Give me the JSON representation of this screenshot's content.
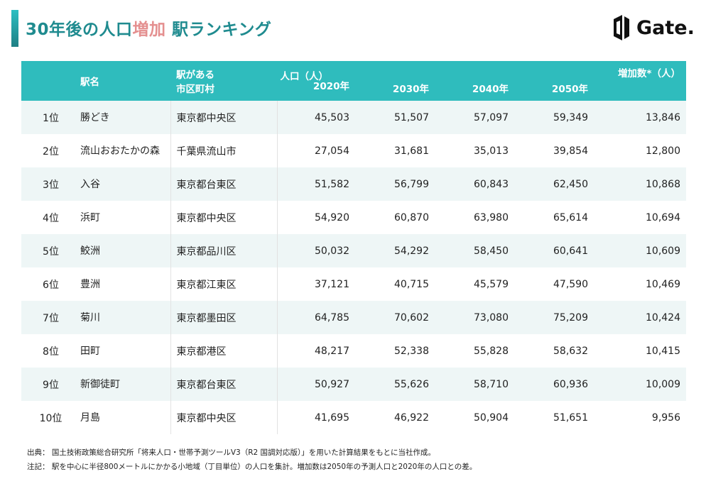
{
  "header": {
    "title_part1": "30年後の人口",
    "title_highlight": "増加",
    "title_part2": " 駅ランキング",
    "logo_text": "Gate."
  },
  "table": {
    "columns": {
      "rank": "",
      "station": "駅名",
      "city_line1": "駅がある",
      "city_line2": "市区町村",
      "population_label": "人口（人）",
      "y2020": "2020年",
      "y2030": "2030年",
      "y2040": "2040年",
      "y2050": "2050年",
      "increase": "増加数*（人）"
    },
    "rows": [
      {
        "rank": "1位",
        "station": "勝どき",
        "city": "東京都中央区",
        "y2020": "45,503",
        "y2030": "51,507",
        "y2040": "57,097",
        "y2050": "59,349",
        "increase": "13,846"
      },
      {
        "rank": "2位",
        "station": "流山おおたかの森",
        "city": "千葉県流山市",
        "y2020": "27,054",
        "y2030": "31,681",
        "y2040": "35,013",
        "y2050": "39,854",
        "increase": "12,800"
      },
      {
        "rank": "3位",
        "station": "入谷",
        "city": "東京都台東区",
        "y2020": "51,582",
        "y2030": "56,799",
        "y2040": "60,843",
        "y2050": "62,450",
        "increase": "10,868"
      },
      {
        "rank": "4位",
        "station": "浜町",
        "city": "東京都中央区",
        "y2020": "54,920",
        "y2030": "60,870",
        "y2040": "63,980",
        "y2050": "65,614",
        "increase": "10,694"
      },
      {
        "rank": "5位",
        "station": "鮫洲",
        "city": "東京都品川区",
        "y2020": "50,032",
        "y2030": "54,292",
        "y2040": "58,450",
        "y2050": "60,641",
        "increase": "10,609"
      },
      {
        "rank": "6位",
        "station": "豊洲",
        "city": "東京都江東区",
        "y2020": "37,121",
        "y2030": "40,715",
        "y2040": "45,579",
        "y2050": "47,590",
        "increase": "10,469"
      },
      {
        "rank": "7位",
        "station": "菊川",
        "city": "東京都墨田区",
        "y2020": "64,785",
        "y2030": "70,602",
        "y2040": "73,080",
        "y2050": "75,209",
        "increase": "10,424"
      },
      {
        "rank": "8位",
        "station": "田町",
        "city": "東京都港区",
        "y2020": "48,217",
        "y2030": "52,338",
        "y2040": "55,828",
        "y2050": "58,632",
        "increase": "10,415"
      },
      {
        "rank": "9位",
        "station": "新御徒町",
        "city": "東京都台東区",
        "y2020": "50,927",
        "y2030": "55,626",
        "y2040": "58,710",
        "y2050": "60,936",
        "increase": "10,009"
      },
      {
        "rank": "10位",
        "station": "月島",
        "city": "東京都中央区",
        "y2020": "41,695",
        "y2030": "46,922",
        "y2040": "50,904",
        "y2050": "51,651",
        "increase": "9,956"
      }
    ]
  },
  "notes": {
    "source": "出典： 国土技術政策総合研究所「将来人口・世帯予測ツールV3（R2 国調対応版）」を用いた計算結果をもとに当社作成。",
    "remark": "注記： 駅を中心に半径800メートルにかかる小地域（丁目単位）の人口を集計。増加数は2050年の予測人口と2020年の人口との差。"
  }
}
